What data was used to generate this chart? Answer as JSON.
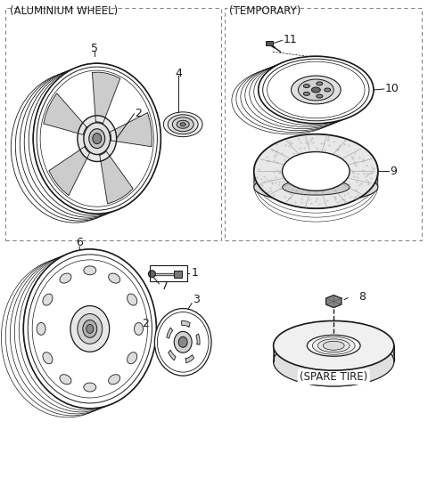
{
  "background_color": "#ffffff",
  "line_color": "#1a1a1a",
  "dashed_box_color": "#888888",
  "box1_label": "(ALUMINIUM WHEEL)",
  "box2_label": "(TEMPORARY)",
  "spare_label": "(SPARE TIRE)",
  "font_size": 8.5
}
